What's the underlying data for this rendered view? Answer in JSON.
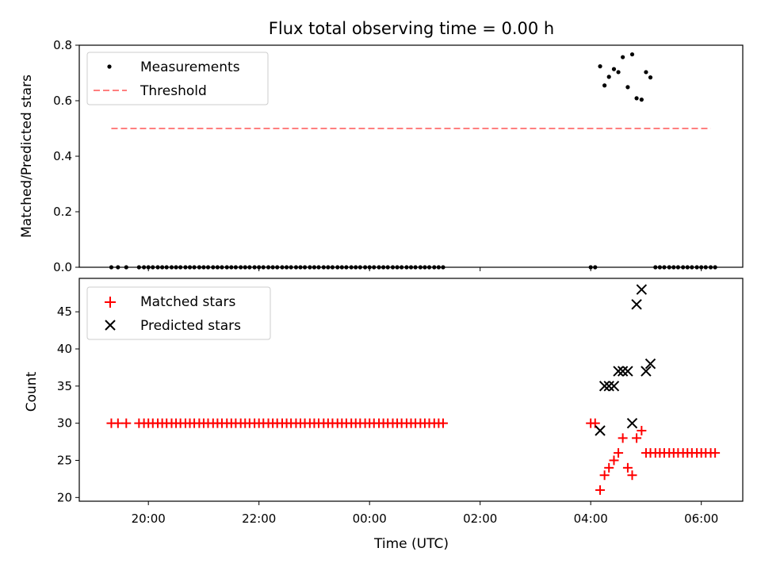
{
  "chart_data": [
    {
      "type": "scatter",
      "title": "Flux total observing time = 0.00 h",
      "xlabel": "",
      "ylabel": "Matched/Predicted stars",
      "ylim": [
        0.0,
        0.8
      ],
      "yticks": [
        0.0,
        0.2,
        0.4,
        0.6,
        0.8
      ],
      "ytick_labels": [
        "0.0",
        "0.2",
        "0.4",
        "0.6",
        "0.8"
      ],
      "xlim": [
        -5.25,
        6.75
      ],
      "xticks": [
        -4,
        -2,
        0,
        2,
        4,
        6
      ],
      "grid": false,
      "legend_position": "upper-left",
      "series": [
        {
          "name": "Measurements",
          "marker": "dot",
          "color": "#000000",
          "points": [
            [
              -4.67,
              0
            ],
            [
              -4.55,
              0
            ],
            [
              -4.4,
              0
            ],
            [
              -4.17,
              0
            ],
            [
              -4.08,
              0
            ],
            [
              -4.0,
              0
            ],
            [
              -3.92,
              0
            ],
            [
              -3.83,
              0
            ],
            [
              -3.75,
              0
            ],
            [
              -3.67,
              0
            ],
            [
              -3.58,
              0
            ],
            [
              -3.5,
              0
            ],
            [
              -3.42,
              0
            ],
            [
              -3.33,
              0
            ],
            [
              -3.25,
              0
            ],
            [
              -3.17,
              0
            ],
            [
              -3.08,
              0
            ],
            [
              -3.0,
              0
            ],
            [
              -2.92,
              0
            ],
            [
              -2.83,
              0
            ],
            [
              -2.75,
              0
            ],
            [
              -2.67,
              0
            ],
            [
              -2.58,
              0
            ],
            [
              -2.5,
              0
            ],
            [
              -2.42,
              0
            ],
            [
              -2.33,
              0
            ],
            [
              -2.25,
              0
            ],
            [
              -2.17,
              0
            ],
            [
              -2.08,
              0
            ],
            [
              -2.0,
              0
            ],
            [
              -1.92,
              0
            ],
            [
              -1.83,
              0
            ],
            [
              -1.75,
              0
            ],
            [
              -1.67,
              0
            ],
            [
              -1.58,
              0
            ],
            [
              -1.5,
              0
            ],
            [
              -1.42,
              0
            ],
            [
              -1.33,
              0
            ],
            [
              -1.25,
              0
            ],
            [
              -1.17,
              0
            ],
            [
              -1.08,
              0
            ],
            [
              -1.0,
              0
            ],
            [
              -0.92,
              0
            ],
            [
              -0.83,
              0
            ],
            [
              -0.75,
              0
            ],
            [
              -0.67,
              0
            ],
            [
              -0.58,
              0
            ],
            [
              -0.5,
              0
            ],
            [
              -0.42,
              0
            ],
            [
              -0.33,
              0
            ],
            [
              -0.25,
              0
            ],
            [
              -0.17,
              0
            ],
            [
              -0.08,
              0
            ],
            [
              0.0,
              0
            ],
            [
              0.08,
              0
            ],
            [
              0.17,
              0
            ],
            [
              0.25,
              0
            ],
            [
              0.33,
              0
            ],
            [
              0.42,
              0
            ],
            [
              0.5,
              0
            ],
            [
              0.58,
              0
            ],
            [
              0.67,
              0
            ],
            [
              0.75,
              0
            ],
            [
              0.83,
              0
            ],
            [
              0.92,
              0
            ],
            [
              1.0,
              0
            ],
            [
              1.08,
              0
            ],
            [
              1.17,
              0
            ],
            [
              1.25,
              0
            ],
            [
              1.33,
              0
            ],
            [
              4.0,
              0
            ],
            [
              4.08,
              0
            ],
            [
              4.17,
              0.724
            ],
            [
              4.25,
              0.655
            ],
            [
              4.33,
              0.686
            ],
            [
              4.42,
              0.714
            ],
            [
              4.5,
              0.703
            ],
            [
              4.58,
              0.757
            ],
            [
              4.67,
              0.649
            ],
            [
              4.75,
              0.767
            ],
            [
              4.83,
              0.609
            ],
            [
              4.92,
              0.604
            ],
            [
              5.0,
              0.703
            ],
            [
              5.08,
              0.684
            ],
            [
              5.17,
              0
            ],
            [
              5.25,
              0
            ],
            [
              5.33,
              0
            ],
            [
              5.42,
              0
            ],
            [
              5.5,
              0
            ],
            [
              5.58,
              0
            ],
            [
              5.67,
              0
            ],
            [
              5.75,
              0
            ],
            [
              5.83,
              0
            ],
            [
              5.92,
              0
            ],
            [
              6.0,
              0
            ],
            [
              6.08,
              0
            ],
            [
              6.17,
              0
            ],
            [
              6.25,
              0
            ]
          ]
        },
        {
          "name": "Threshold",
          "marker": "dashed-line",
          "color": "#ff7f7f",
          "points": [
            [
              -4.67,
              0.5
            ],
            [
              6.17,
              0.5
            ]
          ]
        }
      ]
    },
    {
      "type": "scatter",
      "title": "",
      "xlabel": "Time (UTC)",
      "ylabel": "Count",
      "ylim": [
        19.5,
        49.5
      ],
      "yticks": [
        20,
        25,
        30,
        35,
        40,
        45
      ],
      "ytick_labels": [
        "20",
        "25",
        "30",
        "35",
        "40",
        "45"
      ],
      "xlim": [
        -5.25,
        6.75
      ],
      "xticks": [
        -4,
        -2,
        0,
        2,
        4,
        6
      ],
      "xtick_labels": [
        "20:00",
        "22:00",
        "00:00",
        "02:00",
        "04:00",
        "06:00"
      ],
      "grid": false,
      "legend_position": "upper-left",
      "series": [
        {
          "name": "Matched stars",
          "marker": "plus",
          "color": "#ff0000",
          "points": [
            [
              -4.67,
              30
            ],
            [
              -4.55,
              30
            ],
            [
              -4.4,
              30
            ],
            [
              -4.17,
              30
            ],
            [
              -4.08,
              30
            ],
            [
              -4.0,
              30
            ],
            [
              -3.92,
              30
            ],
            [
              -3.83,
              30
            ],
            [
              -3.75,
              30
            ],
            [
              -3.67,
              30
            ],
            [
              -3.58,
              30
            ],
            [
              -3.5,
              30
            ],
            [
              -3.42,
              30
            ],
            [
              -3.33,
              30
            ],
            [
              -3.25,
              30
            ],
            [
              -3.17,
              30
            ],
            [
              -3.08,
              30
            ],
            [
              -3.0,
              30
            ],
            [
              -2.92,
              30
            ],
            [
              -2.83,
              30
            ],
            [
              -2.75,
              30
            ],
            [
              -2.67,
              30
            ],
            [
              -2.58,
              30
            ],
            [
              -2.5,
              30
            ],
            [
              -2.42,
              30
            ],
            [
              -2.33,
              30
            ],
            [
              -2.25,
              30
            ],
            [
              -2.17,
              30
            ],
            [
              -2.08,
              30
            ],
            [
              -2.0,
              30
            ],
            [
              -1.92,
              30
            ],
            [
              -1.83,
              30
            ],
            [
              -1.75,
              30
            ],
            [
              -1.67,
              30
            ],
            [
              -1.58,
              30
            ],
            [
              -1.5,
              30
            ],
            [
              -1.42,
              30
            ],
            [
              -1.33,
              30
            ],
            [
              -1.25,
              30
            ],
            [
              -1.17,
              30
            ],
            [
              -1.08,
              30
            ],
            [
              -1.0,
              30
            ],
            [
              -0.92,
              30
            ],
            [
              -0.83,
              30
            ],
            [
              -0.75,
              30
            ],
            [
              -0.67,
              30
            ],
            [
              -0.58,
              30
            ],
            [
              -0.5,
              30
            ],
            [
              -0.42,
              30
            ],
            [
              -0.33,
              30
            ],
            [
              -0.25,
              30
            ],
            [
              -0.17,
              30
            ],
            [
              -0.08,
              30
            ],
            [
              0.0,
              30
            ],
            [
              0.08,
              30
            ],
            [
              0.17,
              30
            ],
            [
              0.25,
              30
            ],
            [
              0.33,
              30
            ],
            [
              0.42,
              30
            ],
            [
              0.5,
              30
            ],
            [
              0.58,
              30
            ],
            [
              0.67,
              30
            ],
            [
              0.75,
              30
            ],
            [
              0.83,
              30
            ],
            [
              0.92,
              30
            ],
            [
              1.0,
              30
            ],
            [
              1.08,
              30
            ],
            [
              1.17,
              30
            ],
            [
              1.25,
              30
            ],
            [
              1.33,
              30
            ],
            [
              4.0,
              30
            ],
            [
              4.08,
              30
            ],
            [
              4.17,
              21
            ],
            [
              4.25,
              23
            ],
            [
              4.33,
              24
            ],
            [
              4.42,
              25
            ],
            [
              4.5,
              26
            ],
            [
              4.58,
              28
            ],
            [
              4.67,
              24
            ],
            [
              4.75,
              23
            ],
            [
              4.83,
              28
            ],
            [
              4.92,
              29
            ],
            [
              5.0,
              26
            ],
            [
              5.08,
              26
            ],
            [
              5.17,
              26
            ],
            [
              5.25,
              26
            ],
            [
              5.33,
              26
            ],
            [
              5.42,
              26
            ],
            [
              5.5,
              26
            ],
            [
              5.58,
              26
            ],
            [
              5.67,
              26
            ],
            [
              5.75,
              26
            ],
            [
              5.83,
              26
            ],
            [
              5.92,
              26
            ],
            [
              6.0,
              26
            ],
            [
              6.08,
              26
            ],
            [
              6.17,
              26
            ],
            [
              6.25,
              26
            ]
          ]
        },
        {
          "name": "Predicted stars",
          "marker": "x",
          "color": "#000000",
          "points": [
            [
              4.17,
              29
            ],
            [
              4.25,
              35
            ],
            [
              4.33,
              35
            ],
            [
              4.42,
              35
            ],
            [
              4.5,
              37
            ],
            [
              4.58,
              37
            ],
            [
              4.67,
              37
            ],
            [
              4.75,
              30
            ],
            [
              4.83,
              46
            ],
            [
              4.92,
              48
            ],
            [
              5.0,
              37
            ],
            [
              5.08,
              38
            ]
          ]
        }
      ]
    }
  ]
}
